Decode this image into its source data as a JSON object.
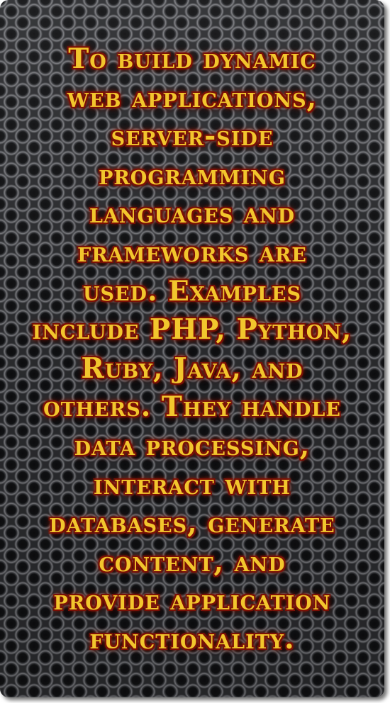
{
  "text": {
    "lines": [
      "To build dynamic",
      "web applications,",
      "server-side",
      "programming",
      "languages and",
      "frameworks are",
      "used. Examples",
      "include PHP, Python,",
      "Ruby, Java, and",
      "others. They handle",
      "data processing,",
      "interact with",
      "databases, generate",
      "content, and",
      "provide application",
      "functionality."
    ]
  },
  "colors": {
    "text_fill": "#f2c62d",
    "text_outline": "#7a1006",
    "text_glow": "#c4230a",
    "background": "#2b2c2f"
  },
  "background_pattern": "perforated-metal-grille"
}
